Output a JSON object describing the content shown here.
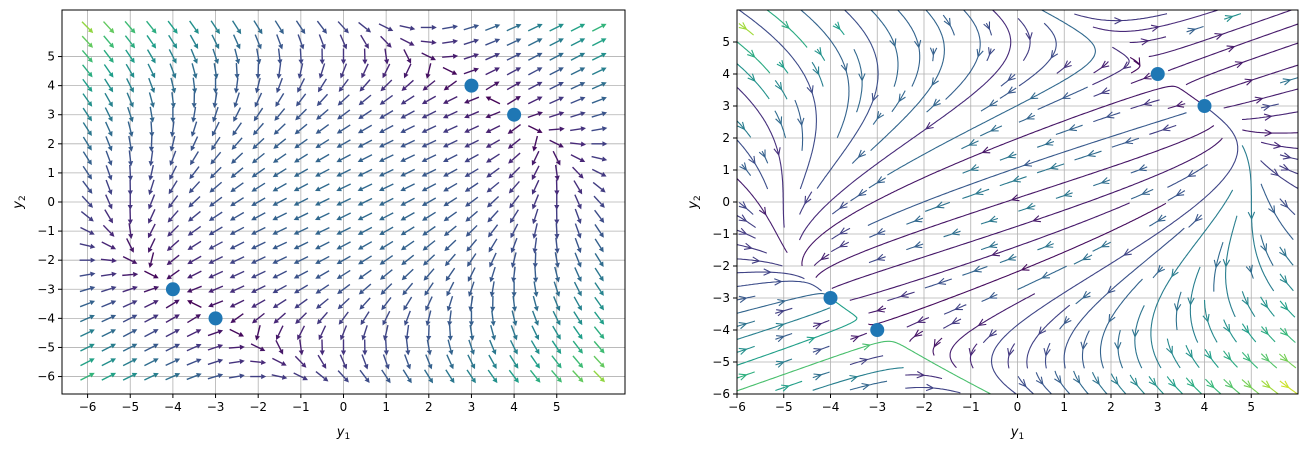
{
  "chart_data": [
    {
      "type": "quiver",
      "title": "",
      "xlabel": "y1",
      "ylabel": "y2",
      "xlim": [
        -6.6,
        6.6
      ],
      "ylim": [
        -6.6,
        6.6
      ],
      "xticks": [
        -6,
        -5,
        -4,
        -3,
        -2,
        -1,
        0,
        1,
        2,
        3,
        4,
        5
      ],
      "yticks": [
        -6,
        -5,
        -4,
        -3,
        -2,
        -1,
        0,
        1,
        2,
        3,
        4,
        5
      ],
      "grid": true,
      "colormap": "viridis",
      "grid_step": 0.5,
      "equilibria": {
        "x": [
          3,
          4,
          -4,
          -3
        ],
        "y": [
          4,
          3,
          -3,
          -4
        ]
      }
    },
    {
      "type": "streamplot",
      "title": "",
      "xlabel": "y1",
      "ylabel": "y2",
      "xlim": [
        -6,
        6
      ],
      "ylim": [
        -6,
        6
      ],
      "xticks": [
        -6,
        -5,
        -4,
        -3,
        -2,
        -1,
        0,
        1,
        2,
        3,
        4,
        5
      ],
      "yticks": [
        -6,
        -5,
        -4,
        -3,
        -2,
        -1,
        0,
        1,
        2,
        3,
        4,
        5
      ],
      "grid": true,
      "colormap": "viridis",
      "equilibria": {
        "x": [
          3,
          4,
          -4,
          -3
        ],
        "y": [
          4,
          3,
          -3,
          -4
        ]
      }
    }
  ],
  "colors": {
    "marker": "#1f77b4",
    "grid": "#b0b0b0",
    "axis": "#000000"
  }
}
